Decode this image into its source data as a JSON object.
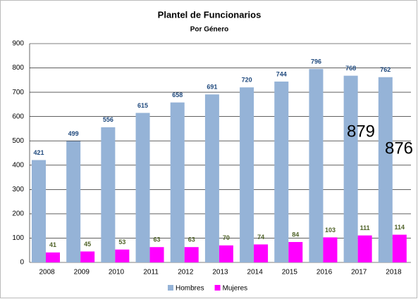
{
  "chart_data": {
    "type": "bar",
    "title": "Plantel de Funcionarios",
    "subtitle": "Por Género",
    "categories": [
      "2008",
      "2009",
      "2010",
      "2011",
      "2012",
      "2013",
      "2014",
      "2015",
      "2016",
      "2017",
      "2018"
    ],
    "series": [
      {
        "name": "Hombres",
        "color": "#95b3d7",
        "label_color": "#1f497d",
        "values": [
          421,
          499,
          556,
          615,
          658,
          691,
          720,
          744,
          796,
          768,
          762
        ]
      },
      {
        "name": "Mujeres",
        "color": "#ff00ff",
        "label_color": "#4f6228",
        "values": [
          41,
          45,
          53,
          63,
          63,
          70,
          74,
          84,
          103,
          111,
          114
        ]
      }
    ],
    "ylim": [
      0,
      900
    ],
    "yticks": [
      0,
      100,
      200,
      300,
      400,
      500,
      600,
      700,
      800,
      900
    ],
    "grid": true,
    "legend": "bottom",
    "annotations": [
      "879",
      "876"
    ]
  }
}
